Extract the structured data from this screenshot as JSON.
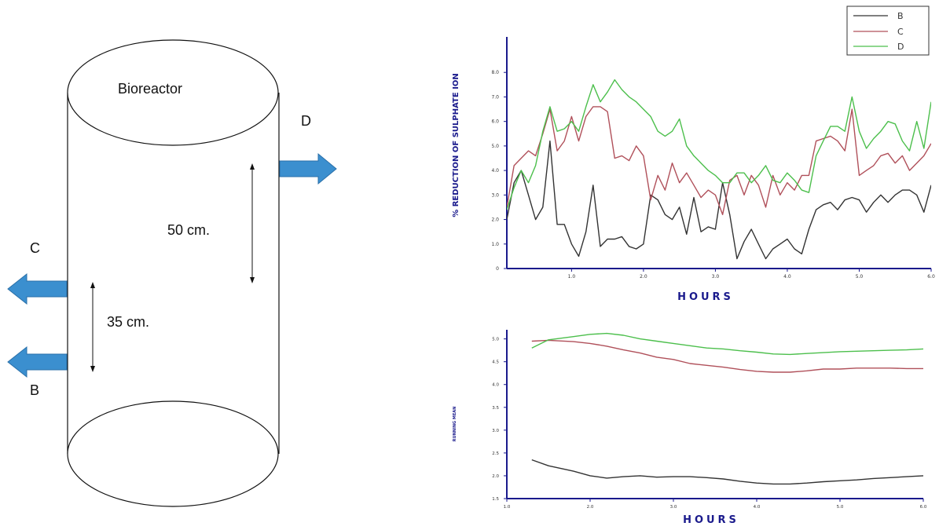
{
  "diagram": {
    "title": "Bioreactor",
    "outlet_b": "B",
    "outlet_c": "C",
    "outlet_d": "D",
    "dim_50": "50 cm.",
    "dim_35": "35 cm.",
    "colors": {
      "arrow": "#3b8fcf",
      "outline": "#111111"
    }
  },
  "chart_data": [
    {
      "type": "line",
      "title": "",
      "xlabel": "HOURS",
      "ylabel": "% REDUCTION OF SULPHATE ION",
      "xlim": [
        1,
        60
      ],
      "ylim": [
        0,
        9
      ],
      "xticks": [
        "1.0",
        "2.0",
        "3.0",
        "4.0",
        "5.0",
        "6.0"
      ],
      "xtick_values": [
        10,
        20,
        30,
        40,
        50,
        60
      ],
      "yticks": [
        "0",
        "1.0",
        "2.0",
        "3.0",
        "4.0",
        "5.0",
        "6.0",
        "7.0",
        "8.0"
      ],
      "ytick_values": [
        0,
        1,
        2,
        3,
        4,
        5,
        6,
        7,
        8
      ],
      "legend": {
        "placement": "top-right",
        "entries": [
          "B",
          "C",
          "D"
        ]
      },
      "x": [
        1,
        2,
        3,
        4,
        5,
        6,
        7,
        8,
        9,
        10,
        11,
        12,
        13,
        14,
        15,
        16,
        17,
        18,
        19,
        20,
        21,
        22,
        23,
        24,
        25,
        26,
        27,
        28,
        29,
        30,
        31,
        32,
        33,
        34,
        35,
        36,
        37,
        38,
        39,
        40,
        41,
        42,
        43,
        44,
        45,
        46,
        47,
        48,
        49,
        50,
        51,
        52,
        53,
        54,
        55,
        56,
        57,
        58,
        59,
        60
      ],
      "series": [
        {
          "name": "B",
          "color": "#333333",
          "values": [
            2.0,
            3.5,
            4.0,
            3.0,
            2.0,
            2.5,
            5.2,
            1.8,
            1.8,
            1.0,
            0.5,
            1.5,
            3.4,
            0.9,
            1.2,
            1.2,
            1.3,
            0.9,
            0.8,
            1.0,
            3.0,
            2.8,
            2.2,
            2.0,
            2.5,
            1.4,
            2.9,
            1.5,
            1.7,
            1.6,
            3.5,
            2.2,
            0.4,
            1.1,
            1.6,
            1.0,
            0.4,
            0.8,
            1.0,
            1.2,
            0.8,
            0.6,
            1.6,
            2.4,
            2.6,
            2.7,
            2.4,
            2.8,
            2.9,
            2.8,
            2.3,
            2.7,
            3.0,
            2.7,
            3.0,
            3.2,
            3.2,
            3.0,
            2.3,
            3.4
          ]
        },
        {
          "name": "C",
          "color": "#b0505a",
          "values": [
            2.5,
            4.2,
            4.5,
            4.8,
            4.6,
            5.5,
            6.5,
            4.8,
            5.2,
            6.2,
            5.2,
            6.2,
            6.6,
            6.6,
            6.4,
            4.5,
            4.6,
            4.4,
            5.0,
            4.6,
            2.8,
            3.8,
            3.2,
            4.3,
            3.5,
            3.9,
            3.4,
            2.9,
            3.2,
            3.0,
            2.2,
            3.6,
            3.8,
            3.0,
            3.8,
            3.4,
            2.5,
            3.8,
            3.0,
            3.5,
            3.2,
            3.8,
            3.8,
            5.2,
            5.3,
            5.4,
            5.2,
            4.8,
            6.5,
            3.8,
            4.0,
            4.2,
            4.6,
            4.7,
            4.3,
            4.6,
            4.0,
            4.3,
            4.6,
            5.1
          ]
        },
        {
          "name": "D",
          "color": "#4cbf4c",
          "values": [
            2.4,
            3.3,
            4.0,
            3.5,
            4.2,
            5.6,
            6.6,
            5.6,
            5.7,
            6.0,
            5.6,
            6.6,
            7.5,
            6.8,
            7.2,
            7.7,
            7.3,
            7.0,
            6.8,
            6.5,
            6.2,
            5.6,
            5.4,
            5.6,
            6.1,
            5.0,
            4.6,
            4.3,
            4.0,
            3.8,
            3.5,
            3.5,
            3.9,
            3.9,
            3.5,
            3.8,
            4.2,
            3.6,
            3.5,
            3.9,
            3.6,
            3.2,
            3.1,
            4.6,
            5.2,
            5.8,
            5.8,
            5.6,
            7.0,
            5.6,
            4.9,
            5.3,
            5.6,
            6.0,
            5.9,
            5.2,
            4.8,
            6.0,
            4.9,
            6.8
          ]
        }
      ]
    },
    {
      "type": "line",
      "title": "",
      "xlabel": "HOURS",
      "ylabel": "RUNNING MEAN",
      "xlim": [
        10,
        60
      ],
      "ylim": [
        1.5,
        5.2
      ],
      "xticks": [
        "1.0",
        "2.0",
        "3.0",
        "4.0",
        "5.0",
        "6.0"
      ],
      "xtick_values": [
        10,
        20,
        30,
        40,
        50,
        60
      ],
      "yticks": [
        "1.5",
        "2.0",
        "2.5",
        "3.0",
        "3.5",
        "4.0",
        "4.5",
        "5.0"
      ],
      "ytick_values": [
        1.5,
        2.0,
        2.5,
        3.0,
        3.5,
        4.0,
        4.5,
        5.0
      ],
      "x": [
        13,
        15,
        18,
        20,
        22,
        24,
        26,
        28,
        30,
        32,
        34,
        36,
        38,
        40,
        42,
        44,
        46,
        48,
        50,
        52,
        54,
        56,
        58,
        60
      ],
      "series": [
        {
          "name": "B",
          "color": "#333333",
          "values": [
            2.35,
            2.22,
            2.1,
            2.0,
            1.95,
            1.98,
            2.0,
            1.97,
            1.98,
            1.98,
            1.96,
            1.93,
            1.88,
            1.84,
            1.82,
            1.82,
            1.84,
            1.87,
            1.89,
            1.91,
            1.94,
            1.96,
            1.98,
            2.0
          ]
        },
        {
          "name": "C",
          "color": "#b0505a",
          "values": [
            4.95,
            4.97,
            4.94,
            4.9,
            4.84,
            4.76,
            4.69,
            4.6,
            4.55,
            4.46,
            4.42,
            4.38,
            4.33,
            4.29,
            4.27,
            4.27,
            4.3,
            4.34,
            4.34,
            4.36,
            4.36,
            4.36,
            4.35,
            4.35
          ]
        },
        {
          "name": "D",
          "color": "#4cbf4c",
          "values": [
            4.8,
            4.98,
            5.05,
            5.1,
            5.12,
            5.08,
            5.0,
            4.95,
            4.9,
            4.85,
            4.8,
            4.78,
            4.74,
            4.71,
            4.67,
            4.66,
            4.68,
            4.7,
            4.72,
            4.73,
            4.74,
            4.75,
            4.76,
            4.78
          ]
        }
      ]
    }
  ]
}
